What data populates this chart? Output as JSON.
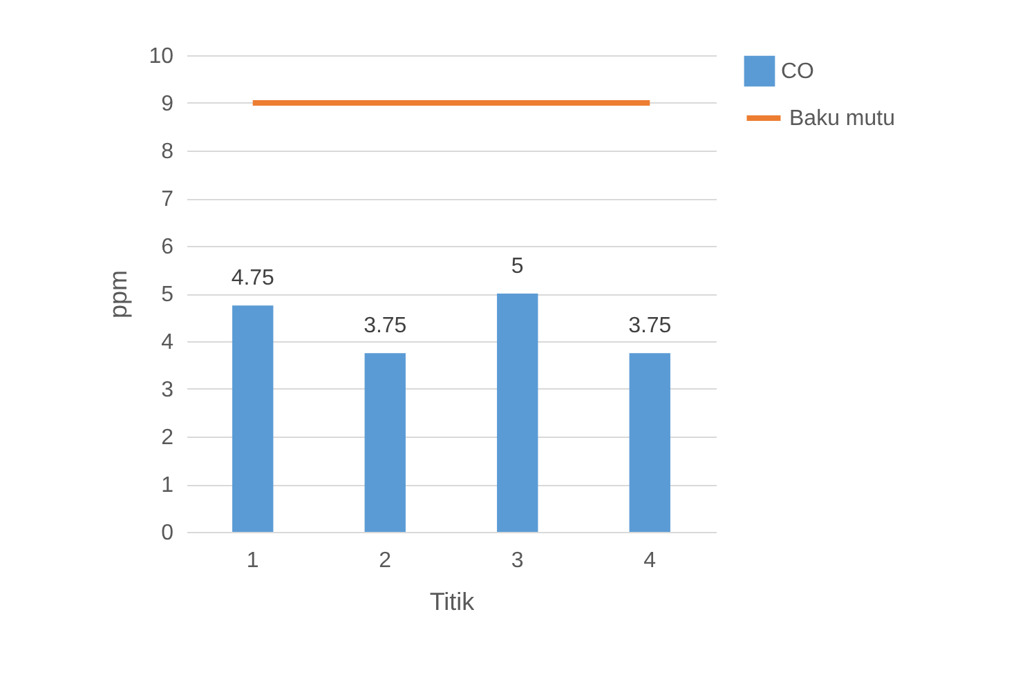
{
  "chart_data": {
    "type": "bar",
    "xlabel": "Titik",
    "ylabel": "ppm",
    "categories": [
      "1",
      "2",
      "3",
      "4"
    ],
    "series": [
      {
        "name": "CO",
        "type": "bar",
        "color": "#5b9bd5",
        "values": [
          4.75,
          3.75,
          5,
          3.75
        ],
        "value_labels": [
          "4.75",
          "3.75",
          "5",
          "3.75"
        ]
      },
      {
        "name": "Baku mutu",
        "type": "line",
        "color": "#ed7d31",
        "values": [
          9,
          9,
          9,
          9
        ]
      }
    ],
    "ylim": [
      0,
      10
    ],
    "yticks": [
      0,
      1,
      2,
      3,
      4,
      5,
      6,
      7,
      8,
      9,
      10
    ],
    "grid": "y",
    "legend": "right"
  }
}
